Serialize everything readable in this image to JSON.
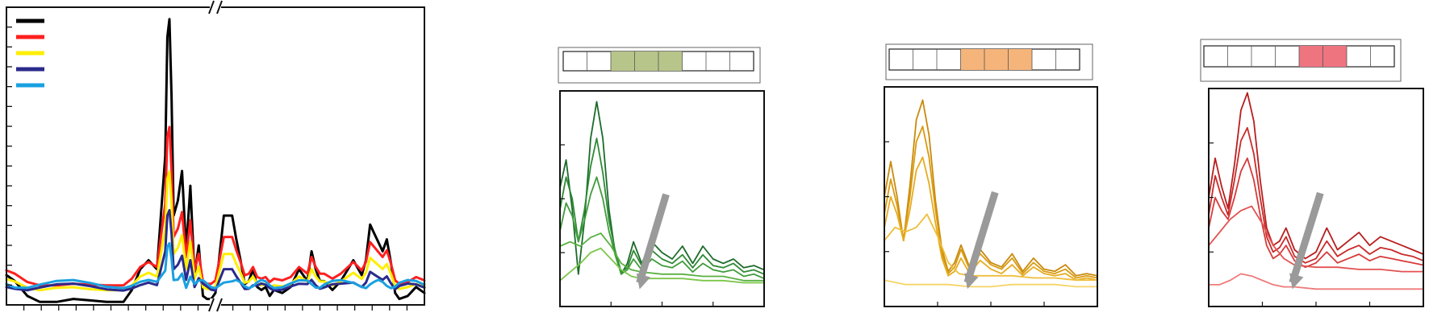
{
  "chart_data": [
    {
      "type": "line",
      "title": "",
      "xlabel": "",
      "ylabel": "",
      "axis_break": true,
      "x_range": [
        0,
        1
      ],
      "ylim": [
        0,
        1
      ],
      "y_ticks": 15,
      "x_ticks": 24,
      "legend": {
        "placement": "top-left",
        "entries": [
          {
            "color": "#000000",
            "label": ""
          },
          {
            "color": "#ff1f1f",
            "label": ""
          },
          {
            "color": "#ffee00",
            "label": ""
          },
          {
            "color": "#2a2a8c",
            "label": ""
          },
          {
            "color": "#1aa0e0",
            "label": ""
          }
        ]
      },
      "series": [
        {
          "color": "#000000",
          "x": [
            0,
            0.02,
            0.05,
            0.08,
            0.12,
            0.16,
            0.2,
            0.24,
            0.28,
            0.3,
            0.32,
            0.34,
            0.36,
            0.38,
            0.385,
            0.39,
            0.395,
            0.4,
            0.41,
            0.42,
            0.43,
            0.44,
            0.45,
            0.46,
            0.47,
            0.48,
            0.49,
            0.5,
            0.52,
            0.54,
            0.55,
            0.56,
            0.57,
            0.58,
            0.59,
            0.6,
            0.61,
            0.62,
            0.63,
            0.64,
            0.66,
            0.68,
            0.7,
            0.72,
            0.73,
            0.74,
            0.75,
            0.76,
            0.78,
            0.8,
            0.83,
            0.85,
            0.86,
            0.87,
            0.88,
            0.89,
            0.9,
            0.91,
            0.92,
            0.93,
            0.94,
            0.96,
            0.98,
            1.0
          ],
          "y": [
            0.1,
            0.08,
            0.03,
            0.01,
            0.01,
            0.02,
            0.015,
            0.01,
            0.01,
            0.05,
            0.12,
            0.15,
            0.12,
            0.5,
            0.9,
            0.96,
            0.7,
            0.3,
            0.35,
            0.45,
            0.18,
            0.4,
            0.1,
            0.2,
            0.03,
            0.02,
            0.02,
            0.04,
            0.3,
            0.3,
            0.22,
            0.15,
            0.07,
            0.08,
            0.12,
            0.06,
            0.05,
            0.06,
            0.03,
            0.05,
            0.04,
            0.06,
            0.12,
            0.08,
            0.18,
            0.12,
            0.08,
            0.08,
            0.05,
            0.08,
            0.15,
            0.1,
            0.15,
            0.27,
            0.24,
            0.21,
            0.18,
            0.22,
            0.14,
            0.04,
            0.02,
            0.03,
            0.06,
            0.04
          ]
        },
        {
          "color": "#ff1f1f",
          "x_scale_of": 0,
          "y_scale": 0.56
        },
        {
          "color": "#ffee00",
          "x_scale_of": 0,
          "y_scale": 0.42
        },
        {
          "color": "#2a2a8c",
          "x_scale_of": 0,
          "y_scale": 0.3
        },
        {
          "color": "#1aa0e0",
          "x_scale_of": 0,
          "y_scale": 0.2
        }
      ]
    },
    {
      "type": "line",
      "title": "",
      "xlabel": "",
      "ylabel": "",
      "x_range": [
        0,
        1
      ],
      "ylim": [
        0,
        1
      ],
      "x_ticks": 4,
      "y_ticks": 4,
      "header_highlight": {
        "total_cells": 8,
        "start_cell": 2,
        "count": 3,
        "color": "#b7c58a"
      },
      "trend_arrow": "down",
      "series": [
        {
          "color": "#1b6b2a",
          "x": [
            0,
            0.03,
            0.06,
            0.09,
            0.12,
            0.15,
            0.18,
            0.21,
            0.24,
            0.27,
            0.3,
            0.33,
            0.36,
            0.4,
            0.45,
            0.5,
            0.55,
            0.6,
            0.65,
            0.7,
            0.75,
            0.8,
            0.85,
            0.9,
            0.95,
            1.0
          ],
          "y": [
            0.55,
            0.68,
            0.45,
            0.15,
            0.4,
            0.78,
            0.95,
            0.78,
            0.45,
            0.25,
            0.15,
            0.2,
            0.3,
            0.2,
            0.3,
            0.25,
            0.22,
            0.28,
            0.2,
            0.28,
            0.22,
            0.2,
            0.22,
            0.18,
            0.19,
            0.17
          ]
        },
        {
          "color": "#2e8a34",
          "x": [
            0,
            0.03,
            0.06,
            0.09,
            0.12,
            0.15,
            0.18,
            0.21,
            0.24,
            0.27,
            0.3,
            0.33,
            0.36,
            0.4,
            0.45,
            0.5,
            0.55,
            0.6,
            0.65,
            0.7,
            0.75,
            0.8,
            0.85,
            0.9,
            0.95,
            1.0
          ],
          "y": [
            0.45,
            0.6,
            0.5,
            0.3,
            0.45,
            0.65,
            0.78,
            0.62,
            0.4,
            0.26,
            0.16,
            0.18,
            0.26,
            0.19,
            0.26,
            0.22,
            0.2,
            0.24,
            0.18,
            0.24,
            0.19,
            0.18,
            0.2,
            0.16,
            0.17,
            0.15
          ]
        },
        {
          "color": "#3e9c3a",
          "x": [
            0,
            0.03,
            0.06,
            0.09,
            0.12,
            0.15,
            0.18,
            0.21,
            0.24,
            0.27,
            0.3,
            0.33,
            0.36,
            0.4,
            0.45,
            0.5,
            0.55,
            0.6,
            0.65,
            0.7,
            0.75,
            0.8,
            0.85,
            0.9,
            0.95,
            1.0
          ],
          "y": [
            0.35,
            0.48,
            0.42,
            0.3,
            0.4,
            0.52,
            0.6,
            0.5,
            0.35,
            0.24,
            0.15,
            0.17,
            0.22,
            0.17,
            0.22,
            0.19,
            0.18,
            0.21,
            0.16,
            0.2,
            0.17,
            0.16,
            0.17,
            0.14,
            0.15,
            0.13
          ]
        },
        {
          "color": "#58b040",
          "x": [
            0,
            0.05,
            0.1,
            0.15,
            0.2,
            0.25,
            0.3,
            0.35,
            0.4,
            0.5,
            0.6,
            0.7,
            0.8,
            0.9,
            1.0
          ],
          "y": [
            0.28,
            0.3,
            0.28,
            0.32,
            0.34,
            0.28,
            0.2,
            0.17,
            0.16,
            0.15,
            0.15,
            0.14,
            0.14,
            0.12,
            0.12
          ]
        },
        {
          "color": "#7cc64a",
          "x": [
            0,
            0.05,
            0.1,
            0.15,
            0.2,
            0.25,
            0.3,
            0.35,
            0.4,
            0.5,
            0.6,
            0.7,
            0.8,
            0.9,
            1.0
          ],
          "y": [
            0.12,
            0.16,
            0.2,
            0.25,
            0.27,
            0.22,
            0.17,
            0.14,
            0.13,
            0.13,
            0.13,
            0.12,
            0.12,
            0.11,
            0.11
          ]
        }
      ]
    },
    {
      "type": "line",
      "title": "",
      "xlabel": "",
      "ylabel": "",
      "x_range": [
        0,
        1
      ],
      "ylim": [
        0,
        1
      ],
      "x_ticks": 4,
      "y_ticks": 4,
      "header_highlight": {
        "total_cells": 8,
        "start_cell": 3,
        "count": 3,
        "color": "#f5b57a"
      },
      "trend_arrow": "down",
      "series": [
        {
          "color": "#c98a0c",
          "x": [
            0,
            0.03,
            0.06,
            0.09,
            0.12,
            0.15,
            0.18,
            0.21,
            0.24,
            0.27,
            0.3,
            0.33,
            0.36,
            0.4,
            0.45,
            0.5,
            0.55,
            0.6,
            0.65,
            0.7,
            0.75,
            0.8,
            0.85,
            0.9,
            0.95,
            1.0
          ],
          "y": [
            0.5,
            0.66,
            0.5,
            0.3,
            0.55,
            0.85,
            0.94,
            0.78,
            0.48,
            0.26,
            0.16,
            0.2,
            0.28,
            0.18,
            0.26,
            0.2,
            0.18,
            0.24,
            0.16,
            0.22,
            0.17,
            0.16,
            0.19,
            0.14,
            0.15,
            0.14
          ]
        },
        {
          "color": "#d99a10",
          "x": [
            0,
            0.03,
            0.06,
            0.09,
            0.12,
            0.15,
            0.18,
            0.21,
            0.24,
            0.27,
            0.3,
            0.33,
            0.36,
            0.4,
            0.45,
            0.5,
            0.55,
            0.6,
            0.65,
            0.7,
            0.75,
            0.8,
            0.85,
            0.9,
            0.95,
            1.0
          ],
          "y": [
            0.42,
            0.58,
            0.46,
            0.3,
            0.5,
            0.75,
            0.82,
            0.68,
            0.44,
            0.24,
            0.15,
            0.18,
            0.26,
            0.17,
            0.24,
            0.19,
            0.17,
            0.22,
            0.15,
            0.2,
            0.16,
            0.15,
            0.17,
            0.13,
            0.14,
            0.13
          ]
        },
        {
          "color": "#e6ac20",
          "x": [
            0,
            0.03,
            0.06,
            0.09,
            0.12,
            0.15,
            0.18,
            0.21,
            0.24,
            0.27,
            0.3,
            0.33,
            0.36,
            0.4,
            0.45,
            0.5,
            0.55,
            0.6,
            0.65,
            0.7,
            0.75,
            0.8,
            0.85,
            0.9,
            0.95,
            1.0
          ],
          "y": [
            0.36,
            0.5,
            0.42,
            0.3,
            0.44,
            0.62,
            0.68,
            0.56,
            0.38,
            0.22,
            0.14,
            0.16,
            0.22,
            0.15,
            0.21,
            0.17,
            0.15,
            0.19,
            0.14,
            0.18,
            0.15,
            0.14,
            0.15,
            0.12,
            0.13,
            0.12
          ]
        },
        {
          "color": "#efbd3a",
          "x": [
            0,
            0.05,
            0.1,
            0.15,
            0.2,
            0.25,
            0.3,
            0.35,
            0.4,
            0.5,
            0.6,
            0.7,
            0.8,
            0.9,
            1.0
          ],
          "y": [
            0.3,
            0.36,
            0.34,
            0.36,
            0.42,
            0.32,
            0.2,
            0.15,
            0.14,
            0.14,
            0.14,
            0.13,
            0.13,
            0.12,
            0.12
          ]
        },
        {
          "color": "#f5d466",
          "x": [
            0,
            0.1,
            0.2,
            0.3,
            0.4,
            0.5,
            0.6,
            0.7,
            0.8,
            0.9,
            1.0
          ],
          "y": [
            0.12,
            0.1,
            0.1,
            0.1,
            0.09,
            0.09,
            0.1,
            0.1,
            0.1,
            0.09,
            0.09
          ]
        }
      ]
    },
    {
      "type": "line",
      "title": "",
      "xlabel": "",
      "ylabel": "",
      "x_range": [
        0,
        1
      ],
      "ylim": [
        0,
        1
      ],
      "x_ticks": 4,
      "y_ticks": 4,
      "header_highlight": {
        "total_cells": 8,
        "start_cell": 4,
        "count": 2,
        "color": "#ee7480"
      },
      "trend_arrow": "down",
      "series": [
        {
          "color": "#b81e1e",
          "x": [
            0,
            0.03,
            0.06,
            0.09,
            0.12,
            0.15,
            0.18,
            0.21,
            0.24,
            0.27,
            0.3,
            0.33,
            0.36,
            0.4,
            0.45,
            0.5,
            0.55,
            0.6,
            0.65,
            0.7,
            0.75,
            0.8,
            0.85,
            0.9,
            0.95,
            1.0
          ],
          "y": [
            0.5,
            0.68,
            0.55,
            0.45,
            0.65,
            0.9,
            0.98,
            0.85,
            0.58,
            0.36,
            0.28,
            0.3,
            0.36,
            0.26,
            0.22,
            0.25,
            0.36,
            0.26,
            0.3,
            0.34,
            0.28,
            0.32,
            0.3,
            0.28,
            0.26,
            0.24
          ]
        },
        {
          "color": "#c92a2a",
          "x": [
            0,
            0.03,
            0.06,
            0.09,
            0.12,
            0.15,
            0.18,
            0.21,
            0.24,
            0.27,
            0.3,
            0.33,
            0.36,
            0.4,
            0.45,
            0.5,
            0.55,
            0.6,
            0.65,
            0.7,
            0.75,
            0.8,
            0.85,
            0.9,
            0.95,
            1.0
          ],
          "y": [
            0.42,
            0.6,
            0.5,
            0.42,
            0.58,
            0.76,
            0.82,
            0.7,
            0.5,
            0.32,
            0.25,
            0.27,
            0.32,
            0.23,
            0.2,
            0.22,
            0.3,
            0.23,
            0.26,
            0.28,
            0.24,
            0.27,
            0.26,
            0.24,
            0.23,
            0.21
          ]
        },
        {
          "color": "#d63a3a",
          "x": [
            0,
            0.03,
            0.06,
            0.09,
            0.12,
            0.15,
            0.18,
            0.21,
            0.24,
            0.27,
            0.3,
            0.33,
            0.36,
            0.4,
            0.45,
            0.5,
            0.55,
            0.6,
            0.65,
            0.7,
            0.75,
            0.8,
            0.85,
            0.9,
            0.95,
            1.0
          ],
          "y": [
            0.36,
            0.5,
            0.44,
            0.4,
            0.5,
            0.62,
            0.68,
            0.58,
            0.42,
            0.28,
            0.22,
            0.24,
            0.28,
            0.21,
            0.18,
            0.2,
            0.25,
            0.2,
            0.22,
            0.24,
            0.21,
            0.23,
            0.22,
            0.21,
            0.2,
            0.19
          ]
        },
        {
          "color": "#e35050",
          "x": [
            0,
            0.05,
            0.1,
            0.15,
            0.2,
            0.25,
            0.3,
            0.35,
            0.4,
            0.5,
            0.6,
            0.7,
            0.8,
            0.9,
            1.0
          ],
          "y": [
            0.28,
            0.34,
            0.4,
            0.44,
            0.46,
            0.38,
            0.28,
            0.22,
            0.19,
            0.18,
            0.18,
            0.17,
            0.17,
            0.16,
            0.16
          ]
        },
        {
          "color": "#ef7a7a",
          "x": [
            0,
            0.05,
            0.1,
            0.15,
            0.2,
            0.25,
            0.3,
            0.35,
            0.4,
            0.5,
            0.6,
            0.7,
            0.8,
            0.9,
            1.0
          ],
          "y": [
            0.1,
            0.1,
            0.12,
            0.15,
            0.14,
            0.12,
            0.1,
            0.09,
            0.09,
            0.08,
            0.08,
            0.08,
            0.08,
            0.08,
            0.08
          ]
        }
      ]
    }
  ]
}
